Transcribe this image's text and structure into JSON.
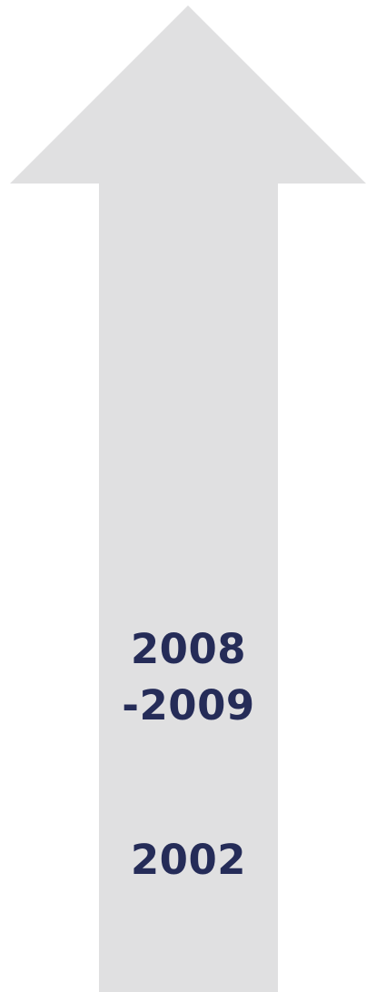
{
  "colors": {
    "arrow_fill": "#e0e0e1",
    "text": "#252c58"
  },
  "timeline": {
    "labels": [
      {
        "line1": "2008",
        "line2": "-2009"
      },
      {
        "line1": "2002"
      }
    ]
  }
}
